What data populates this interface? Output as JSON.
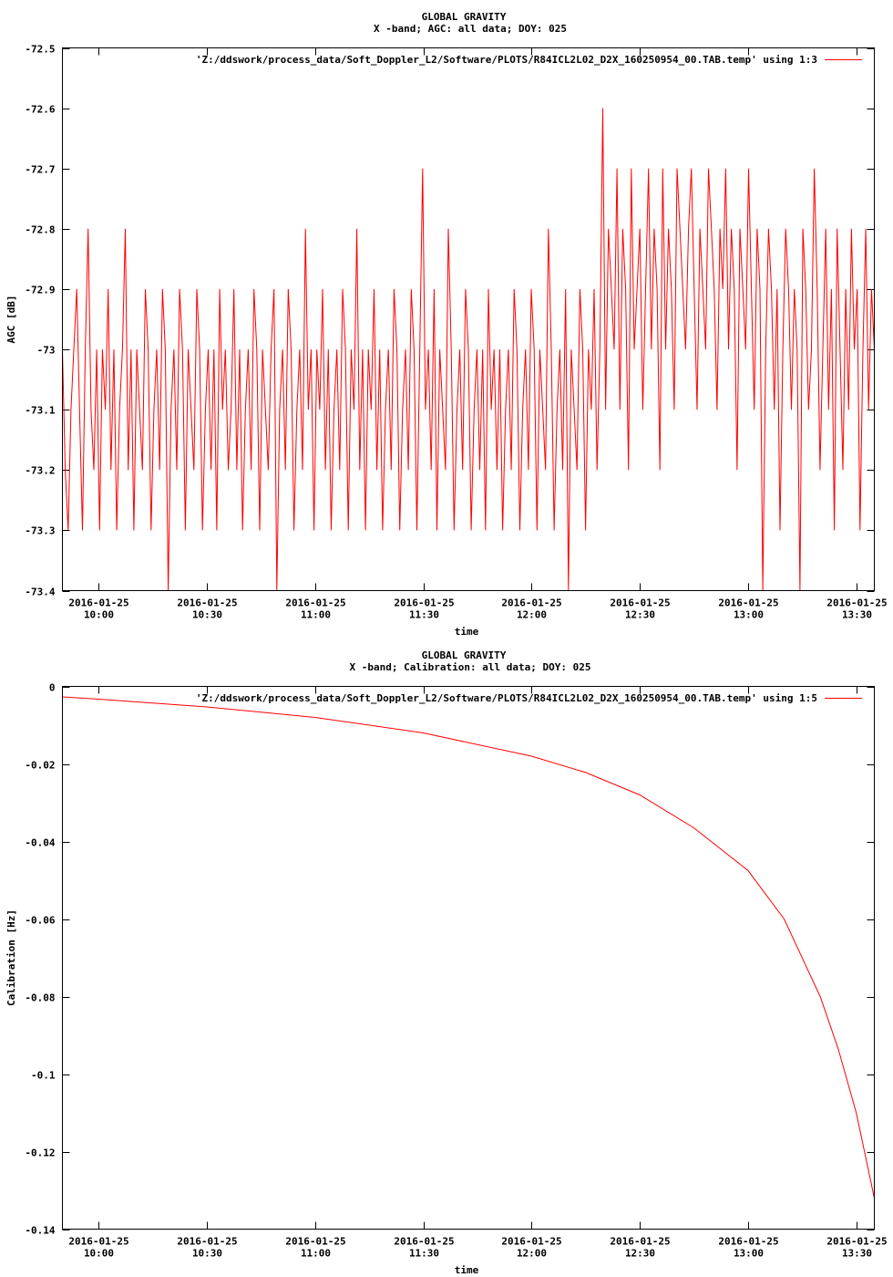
{
  "colors": {
    "series": "#ff0000",
    "axes": "#000000",
    "background": "#ffffff"
  },
  "chart_data": [
    {
      "type": "line",
      "title": "GLOBAL GRAVITY",
      "subtitle": "X -band; AGC: all data; DOY: 025",
      "xlabel": "time",
      "ylabel": "AGC [dB]",
      "legend_placement": "top-right",
      "grid": false,
      "xlim": [
        "2016-01-25 09:50",
        "2016-01-25 13:35"
      ],
      "ylim": [
        -73.4,
        -72.5
      ],
      "xticks": [
        "2016-01-25 10:00",
        "2016-01-25 10:30",
        "2016-01-25 11:00",
        "2016-01-25 11:30",
        "2016-01-25 12:00",
        "2016-01-25 12:30",
        "2016-01-25 13:00",
        "2016-01-25 13:30"
      ],
      "xtick_labels": [
        [
          "2016-01-25",
          "10:00"
        ],
        [
          "2016-01-25",
          "10:30"
        ],
        [
          "2016-01-25",
          "11:00"
        ],
        [
          "2016-01-25",
          "11:30"
        ],
        [
          "2016-01-25",
          "12:00"
        ],
        [
          "2016-01-25",
          "12:30"
        ],
        [
          "2016-01-25",
          "13:00"
        ],
        [
          "2016-01-25",
          "13:30"
        ]
      ],
      "yticks": [
        -72.5,
        -72.6,
        -72.7,
        -72.8,
        -72.9,
        -73,
        -73.1,
        -73.2,
        -73.3,
        -73.4
      ],
      "ytick_labels": [
        "-72.5",
        "-72.6",
        "-72.7",
        "-72.8",
        "-72.9",
        "-73",
        "-73.1",
        "-73.2",
        "-73.3",
        "-73.4"
      ],
      "series": [
        {
          "name": "'Z:/ddswork/process_data/Soft_Doppler_L2/Software/PLOTS/R84ICL2L02_D2X_160250954_00.TAB.temp' using 1:3",
          "start": "2016-01-25 09:50",
          "end": "2016-01-25 13:35",
          "levels": [
            -73,
            -73.2,
            -73.3,
            -73.1,
            -73,
            -72.9,
            -73.1,
            -73.3,
            -73,
            -72.8,
            -73.1,
            -73.2,
            -73,
            -73.3,
            -73,
            -73.1,
            -72.9,
            -73.2,
            -73,
            -73.3,
            -73.1,
            -73,
            -72.8,
            -73.2,
            -73,
            -73.3,
            -73,
            -73.1,
            -73.2,
            -72.9,
            -73,
            -73.3,
            -73.1,
            -73,
            -73.2,
            -72.9,
            -73,
            -73.4,
            -73.1,
            -73,
            -73.2,
            -72.9,
            -73,
            -73.3,
            -73,
            -73.1,
            -73.2,
            -72.9,
            -73,
            -73.3,
            -73.1,
            -73,
            -73.2,
            -73,
            -73.3,
            -72.9,
            -73.1,
            -73,
            -73.2,
            -73.1,
            -72.9,
            -73.2,
            -73,
            -73.3,
            -73.1,
            -73,
            -73.2,
            -72.9,
            -73,
            -73.3,
            -73,
            -73.1,
            -73.2,
            -73,
            -72.9,
            -73.4,
            -73.1,
            -73,
            -73.2,
            -72.9,
            -73,
            -73.3,
            -73.1,
            -73,
            -73.2,
            -72.8,
            -73.1,
            -73,
            -73.3,
            -73,
            -73.1,
            -72.9,
            -73.2,
            -73,
            -73.3,
            -73.1,
            -73,
            -73.2,
            -72.9,
            -73,
            -73.3,
            -73,
            -73.1,
            -72.8,
            -73.2,
            -73,
            -73.3,
            -73,
            -73.1,
            -72.9,
            -73.2,
            -73,
            -73.3,
            -73.1,
            -73,
            -73.2,
            -72.9,
            -73,
            -73.3,
            -73.1,
            -73,
            -73.2,
            -72.9,
            -73,
            -73.3,
            -73,
            -72.7,
            -73.1,
            -73,
            -73.2,
            -72.9,
            -73.3,
            -73,
            -73.1,
            -73.2,
            -72.8,
            -73,
            -73.3,
            -73.1,
            -73,
            -73.2,
            -72.9,
            -73,
            -73.3,
            -73.1,
            -73,
            -73.2,
            -73,
            -73.3,
            -72.9,
            -73.1,
            -73,
            -73.2,
            -73,
            -73.3,
            -73.1,
            -73,
            -73.2,
            -72.9,
            -73,
            -73.3,
            -73.1,
            -73,
            -73.2,
            -72.9,
            -73,
            -73.3,
            -73,
            -73.1,
            -73.2,
            -72.8,
            -73,
            -73.3,
            -73.1,
            -73,
            -73.2,
            -72.9,
            -73.4,
            -73,
            -73.1,
            -73.2,
            -72.9,
            -73,
            -73.3,
            -73,
            -73.1,
            -72.9,
            -73.2,
            -73,
            -72.6,
            -73.1,
            -72.8,
            -72.9,
            -73,
            -72.7,
            -73.1,
            -72.8,
            -72.9,
            -73.2,
            -72.7,
            -73,
            -72.9,
            -72.8,
            -73.1,
            -72.9,
            -72.7,
            -73,
            -72.8,
            -72.9,
            -73.2,
            -72.7,
            -73,
            -72.8,
            -72.9,
            -73.1,
            -72.7,
            -72.8,
            -72.9,
            -73,
            -72.8,
            -72.7,
            -72.9,
            -73.1,
            -72.8,
            -72.9,
            -73,
            -72.7,
            -72.8,
            -72.9,
            -73.1,
            -72.8,
            -72.9,
            -72.7,
            -73,
            -72.8,
            -72.9,
            -73.2,
            -72.8,
            -72.9,
            -73,
            -72.7,
            -72.9,
            -73.1,
            -72.8,
            -72.9,
            -73.4,
            -73,
            -72.8,
            -72.9,
            -73.1,
            -72.9,
            -73.3,
            -73,
            -72.8,
            -72.9,
            -73.1,
            -72.9,
            -73,
            -73.4,
            -72.8,
            -72.9,
            -73.1,
            -73,
            -72.7,
            -72.9,
            -73.2,
            -73,
            -72.8,
            -73.1,
            -72.9,
            -73.3,
            -72.8,
            -73,
            -73.2,
            -72.9,
            -73.1,
            -72.8,
            -73,
            -72.9,
            -73.3,
            -73,
            -72.8,
            -73.1,
            -72.9,
            -73
          ]
        }
      ]
    },
    {
      "type": "line",
      "title": "GLOBAL GRAVITY",
      "subtitle": "X -band; Calibration: all data; DOY: 025",
      "xlabel": "time",
      "ylabel": "Calibration [Hz]",
      "legend_placement": "top-right",
      "grid": false,
      "xlim": [
        "2016-01-25 09:50",
        "2016-01-25 13:35"
      ],
      "ylim": [
        -0.14,
        0
      ],
      "xticks": [
        "2016-01-25 10:00",
        "2016-01-25 10:30",
        "2016-01-25 11:00",
        "2016-01-25 11:30",
        "2016-01-25 12:00",
        "2016-01-25 12:30",
        "2016-01-25 13:00",
        "2016-01-25 13:30"
      ],
      "xtick_labels": [
        [
          "2016-01-25",
          "10:00"
        ],
        [
          "2016-01-25",
          "10:30"
        ],
        [
          "2016-01-25",
          "11:00"
        ],
        [
          "2016-01-25",
          "11:30"
        ],
        [
          "2016-01-25",
          "12:00"
        ],
        [
          "2016-01-25",
          "12:30"
        ],
        [
          "2016-01-25",
          "13:00"
        ],
        [
          "2016-01-25",
          "13:30"
        ]
      ],
      "yticks": [
        0,
        -0.02,
        -0.04,
        -0.06,
        -0.08,
        -0.1,
        -0.12,
        -0.14
      ],
      "ytick_labels": [
        "0",
        "-0.02",
        "-0.04",
        "-0.06",
        "-0.08",
        "-0.1",
        "-0.12",
        "-0.14"
      ],
      "series": [
        {
          "name": "'Z:/ddswork/process_data/Soft_Doppler_L2/Software/PLOTS/R84ICL2L02_D2X_160250954_00.TAB.temp' using 1:5",
          "x": [
            "2016-01-25 09:50",
            "2016-01-25 10:00",
            "2016-01-25 10:30",
            "2016-01-25 11:00",
            "2016-01-25 11:30",
            "2016-01-25 12:00",
            "2016-01-25 12:15",
            "2016-01-25 12:30",
            "2016-01-25 12:45",
            "2016-01-25 13:00",
            "2016-01-25 13:10",
            "2016-01-25 13:20",
            "2016-01-25 13:25",
            "2016-01-25 13:30",
            "2016-01-25 13:35"
          ],
          "y": [
            -0.0027,
            -0.0033,
            -0.0053,
            -0.008,
            -0.012,
            -0.018,
            -0.0222,
            -0.028,
            -0.0365,
            -0.0475,
            -0.06,
            -0.08,
            -0.0935,
            -0.11,
            -0.132
          ]
        }
      ]
    }
  ]
}
